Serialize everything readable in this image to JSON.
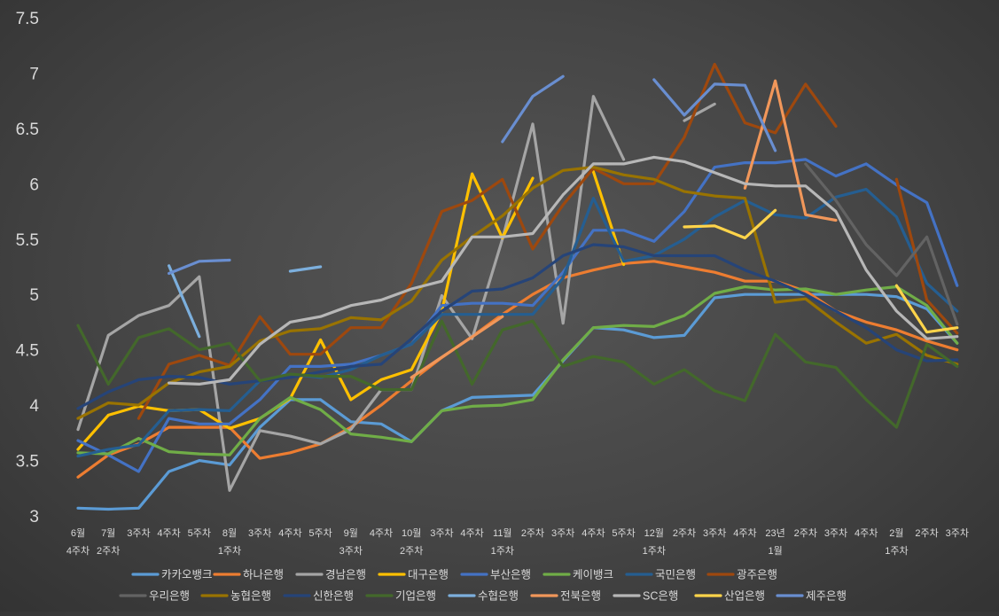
{
  "chart_data": {
    "type": "line",
    "title": "",
    "xlabel": "",
    "ylabel": "",
    "ylim": [
      3,
      7.5
    ],
    "yticks": [
      "3",
      "3.5",
      "4",
      "4.5",
      "5",
      "5.5",
      "6",
      "6.5",
      "7",
      "7.5"
    ],
    "grid": false,
    "legend_position": "bottom",
    "categories": [
      [
        "6월",
        "4주차"
      ],
      [
        "7월",
        "2주차"
      ],
      [
        "3주차",
        ""
      ],
      [
        "4주차",
        ""
      ],
      [
        "5주차",
        ""
      ],
      [
        "8월",
        "1주차"
      ],
      [
        "3주차",
        ""
      ],
      [
        "4주차",
        ""
      ],
      [
        "5주차",
        ""
      ],
      [
        "9월",
        "3주차"
      ],
      [
        "4주차",
        ""
      ],
      [
        "10월",
        "2주차"
      ],
      [
        "3주차",
        ""
      ],
      [
        "4주차",
        ""
      ],
      [
        "11월",
        "1주차"
      ],
      [
        "2주차",
        ""
      ],
      [
        "3주차",
        ""
      ],
      [
        "4주차",
        ""
      ],
      [
        "5주차",
        ""
      ],
      [
        "12월",
        "1주차"
      ],
      [
        "2주차",
        ""
      ],
      [
        "3주차",
        ""
      ],
      [
        "4주차",
        ""
      ],
      [
        "23년",
        "1월"
      ],
      [
        "2주차",
        ""
      ],
      [
        "3주차",
        ""
      ],
      [
        "4주차",
        ""
      ],
      [
        "2월",
        "1주차"
      ],
      [
        "2주차",
        ""
      ],
      [
        "3주차",
        ""
      ]
    ],
    "series": [
      {
        "name": "카카오뱅크",
        "color": "#5b9bd5",
        "values": [
          3.07,
          3.06,
          3.07,
          3.4,
          3.5,
          3.46,
          3.8,
          4.05,
          4.05,
          3.85,
          3.83,
          3.67,
          3.95,
          4.07,
          4.08,
          4.09,
          4.4,
          4.7,
          4.68,
          4.61,
          4.63,
          4.97,
          5.0,
          5.0,
          5.0,
          5.0,
          5.0,
          4.98,
          4.87,
          4.56
        ]
      },
      {
        "name": "하나은행",
        "color": "#ed7d31",
        "values": [
          3.35,
          3.55,
          3.65,
          3.8,
          3.8,
          3.8,
          3.52,
          3.57,
          3.65,
          3.8,
          4.0,
          4.22,
          4.43,
          4.62,
          4.82,
          5.0,
          5.15,
          5.22,
          5.28,
          5.3,
          5.25,
          5.2,
          5.12,
          5.12,
          5.03,
          4.85,
          4.75,
          4.68,
          4.58,
          4.5
        ]
      },
      {
        "name": "경남은행",
        "color": "#a5a5a5",
        "values": [
          3.78,
          4.63,
          4.81,
          4.9,
          5.16,
          3.23,
          3.77,
          3.72,
          3.65,
          3.78,
          4.14,
          4.14,
          4.99,
          4.6,
          5.5,
          6.54,
          4.74,
          6.79,
          6.22,
          null,
          6.57,
          6.72,
          null,
          null,
          6.16,
          null,
          null,
          null,
          null,
          null
        ]
      },
      {
        "name": "대구은행",
        "color": "#ffc000",
        "values": [
          3.6,
          3.91,
          3.99,
          3.95,
          3.96,
          3.79,
          3.88,
          4.06,
          4.59,
          4.05,
          4.23,
          4.32,
          4.85,
          6.09,
          5.51,
          6.05,
          null,
          6.11,
          5.27,
          null,
          null,
          null,
          null,
          null,
          null,
          null,
          null,
          null,
          null,
          null
        ]
      },
      {
        "name": "부산은행",
        "color": "#4472c4",
        "values": [
          3.68,
          3.55,
          3.4,
          3.88,
          3.83,
          3.83,
          4.05,
          4.35,
          4.35,
          4.37,
          4.45,
          4.55,
          4.9,
          4.92,
          4.92,
          4.9,
          5.2,
          5.58,
          5.58,
          5.48,
          5.75,
          6.15,
          6.19,
          6.19,
          6.22,
          6.07,
          6.18,
          5.99,
          5.83,
          5.08
        ]
      },
      {
        "name": "케이뱅크",
        "color": "#70ad47",
        "values": [
          3.57,
          3.56,
          3.7,
          3.58,
          3.56,
          3.55,
          3.88,
          4.07,
          3.96,
          3.74,
          3.71,
          3.67,
          3.95,
          3.99,
          4.0,
          4.05,
          4.41,
          4.7,
          4.72,
          4.71,
          4.81,
          5.01,
          5.07,
          5.04,
          5.05,
          5.0,
          5.04,
          5.07,
          4.9,
          4.56
        ]
      },
      {
        "name": "국민은행",
        "color": "#255e91",
        "values": [
          3.54,
          3.6,
          3.64,
          3.95,
          3.96,
          3.95,
          4.22,
          4.28,
          4.25,
          4.32,
          4.45,
          4.55,
          4.82,
          4.82,
          4.82,
          4.82,
          5.15,
          5.87,
          5.3,
          5.35,
          5.5,
          5.7,
          5.85,
          5.72,
          5.69,
          5.88,
          5.95,
          5.7,
          5.1,
          4.85
        ]
      },
      {
        "name": "광주은행",
        "color": "#9e480e",
        "values": [
          null,
          null,
          3.88,
          4.37,
          4.45,
          4.36,
          4.8,
          4.46,
          4.46,
          4.7,
          4.7,
          5.1,
          5.75,
          5.85,
          6.04,
          5.41,
          5.81,
          6.14,
          6.0,
          6.0,
          6.42,
          7.08,
          6.55,
          6.46,
          6.9,
          6.52,
          null,
          6.04,
          4.95,
          4.65
        ]
      },
      {
        "name": "우리은행",
        "color": "#636363",
        "values": [
          null,
          null,
          null,
          null,
          null,
          null,
          null,
          null,
          null,
          null,
          null,
          null,
          null,
          null,
          null,
          null,
          null,
          null,
          null,
          null,
          null,
          null,
          null,
          null,
          6.18,
          5.85,
          5.45,
          5.17,
          5.52,
          4.73
        ]
      },
      {
        "name": "농협은행",
        "color": "#997300",
        "values": [
          3.88,
          4.02,
          4.0,
          4.2,
          4.3,
          4.35,
          4.58,
          4.67,
          4.69,
          4.79,
          4.77,
          4.94,
          5.31,
          5.52,
          5.71,
          5.96,
          6.12,
          6.15,
          6.08,
          6.04,
          5.93,
          5.89,
          5.87,
          4.93,
          4.96,
          4.75,
          4.56,
          4.64,
          4.45,
          4.37
        ]
      },
      {
        "name": "신한은행",
        "color": "#264478",
        "values": [
          3.97,
          4.12,
          4.23,
          4.26,
          4.25,
          4.19,
          4.22,
          4.25,
          4.3,
          4.35,
          4.37,
          4.6,
          4.85,
          5.03,
          5.05,
          5.15,
          5.35,
          5.45,
          5.43,
          5.35,
          5.35,
          5.35,
          5.22,
          5.12,
          5.0,
          4.85,
          4.7,
          4.5,
          4.4,
          4.41
        ]
      },
      {
        "name": "기업은행",
        "color": "#43682b",
        "values": [
          4.72,
          4.19,
          4.61,
          4.69,
          4.5,
          4.56,
          4.22,
          4.28,
          4.26,
          4.26,
          4.14,
          4.14,
          4.76,
          4.19,
          4.68,
          4.76,
          4.35,
          4.44,
          4.39,
          4.19,
          4.32,
          4.13,
          4.04,
          4.64,
          4.39,
          4.34,
          4.05,
          3.8,
          4.55,
          4.35
        ]
      },
      {
        "name": "수협은행",
        "color": "#7cafdd",
        "values": [
          null,
          null,
          null,
          5.26,
          4.62,
          null,
          null,
          null,
          null,
          null,
          null,
          null,
          null,
          null,
          null,
          null,
          null,
          null,
          null,
          null,
          null,
          null,
          null,
          null,
          null,
          null,
          null,
          null,
          null,
          null
        ]
      },
      {
        "name": "전북은행",
        "color": "#f1975a",
        "values": [
          null,
          null,
          null,
          null,
          null,
          null,
          null,
          null,
          null,
          null,
          null,
          null,
          null,
          null,
          null,
          null,
          null,
          null,
          null,
          null,
          null,
          null,
          5.96,
          6.93,
          5.72,
          5.67,
          null,
          null,
          null,
          null
        ]
      },
      {
        "name": "SC은행",
        "color": "#b7b7b7",
        "values": [
          null,
          null,
          null,
          4.2,
          4.19,
          4.23,
          4.55,
          4.75,
          4.8,
          4.9,
          4.95,
          5.05,
          5.12,
          5.52,
          5.52,
          5.55,
          5.9,
          6.18,
          6.18,
          6.24,
          6.2,
          6.1,
          6.0,
          5.98,
          5.98,
          5.75,
          5.22,
          4.85,
          4.6,
          4.62
        ]
      },
      {
        "name": "산업은행",
        "color": "#ffd44a",
        "values": [
          null,
          null,
          null,
          null,
          null,
          null,
          null,
          null,
          null,
          null,
          null,
          null,
          null,
          null,
          null,
          null,
          null,
          null,
          null,
          null,
          5.61,
          5.62,
          5.51,
          5.76,
          null,
          null,
          null,
          5.08,
          4.66,
          4.7
        ]
      },
      {
        "name": "제주은행",
        "color": "#698ed0",
        "values": [
          null,
          null,
          null,
          5.19,
          5.3,
          5.31,
          null,
          null,
          null,
          null,
          null,
          null,
          null,
          null,
          6.38,
          6.79,
          6.97,
          null,
          null,
          6.94,
          6.62,
          6.9,
          6.89,
          6.3,
          null,
          null,
          null,
          null,
          null,
          null
        ]
      }
    ],
    "extra_segments": [
      {
        "series": "수협은행",
        "x": [
          7,
          8
        ],
        "y": [
          5.21,
          5.25
        ]
      },
      {
        "series": "전북은행",
        "x": [
          11,
          14
        ],
        "y": [
          4.25,
          4.8
        ]
      }
    ]
  }
}
